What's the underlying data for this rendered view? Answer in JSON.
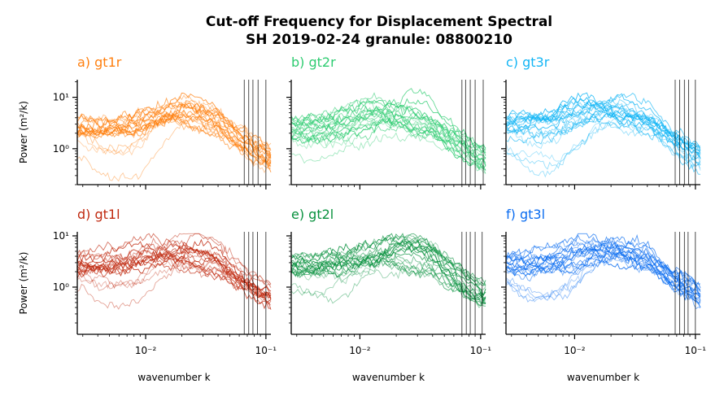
{
  "figure": {
    "title_line1": "Cut-off Frequency for Displacement Spectral",
    "title_line2": "SH 2019-02-24 granule: 08800210"
  },
  "chart_data": {
    "type": "line",
    "xscale": "log",
    "yscale": "log",
    "xlabel": "wavenumber k",
    "ylabel": "Power (m²/k)",
    "xlim": [
      0.0027,
      0.11
    ],
    "x_tick_labels": [
      "10⁻²",
      "10⁻¹"
    ],
    "y_tick_labels": [
      "10⁰",
      "10¹"
    ],
    "lines_per_panel": 20,
    "panels": [
      {
        "label": "a) gt1r",
        "color": "#ff7f0e",
        "ylim": [
          0.2,
          22
        ],
        "cutoffs": [
          0.066,
          0.072,
          0.078,
          0.086,
          0.1
        ],
        "lowest_line_min": 0.45
      },
      {
        "label": "b) gt2r",
        "color": "#2ecc71",
        "ylim": [
          0.2,
          22
        ],
        "cutoffs": [
          0.07,
          0.075,
          0.082,
          0.09,
          0.105
        ],
        "lowest_line_min": 0.3
      },
      {
        "label": "c) gt3r",
        "color": "#12b5f5",
        "ylim": [
          0.2,
          22
        ],
        "cutoffs": [
          0.068,
          0.074,
          0.081,
          0.088,
          0.1
        ],
        "lowest_line_min": 0.5
      },
      {
        "label": "d) gt1l",
        "color": "#c0290f",
        "ylim": [
          0.12,
          12
        ],
        "cutoffs": [
          0.066,
          0.072,
          0.078,
          0.085,
          0.1
        ],
        "lowest_line_min": 0.25
      },
      {
        "label": "e) gt2l",
        "color": "#08913e",
        "ylim": [
          0.12,
          12
        ],
        "cutoffs": [
          0.07,
          0.076,
          0.082,
          0.09,
          0.103
        ],
        "lowest_line_min": 0.2
      },
      {
        "label": "f) gt3l",
        "color": "#0a6cf0",
        "ylim": [
          0.12,
          12
        ],
        "cutoffs": [
          0.068,
          0.074,
          0.081,
          0.087,
          0.1
        ],
        "lowest_line_min": 0.3
      }
    ]
  }
}
